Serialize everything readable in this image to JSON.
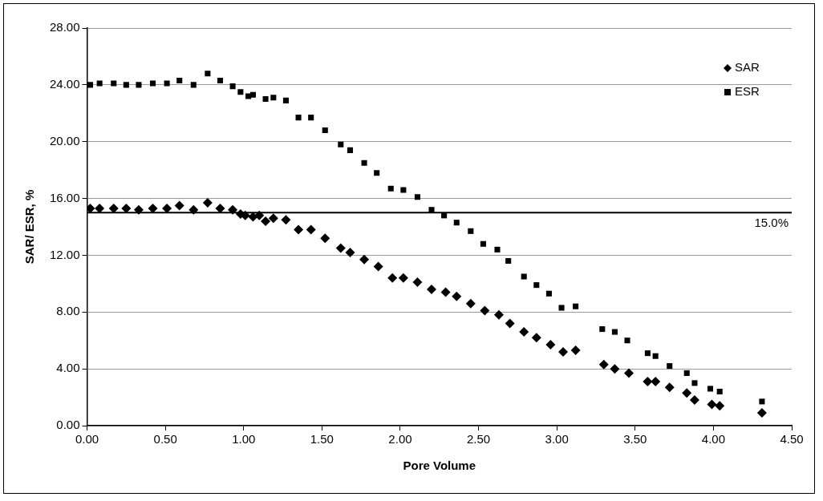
{
  "chart_data": {
    "type": "scatter",
    "xlabel": "Pore Volume",
    "ylabel": "SAR/ ESR, %",
    "xlim": [
      0,
      4.5
    ],
    "ylim": [
      0,
      28
    ],
    "xticks": [
      {
        "value": 0,
        "label": "0.00"
      },
      {
        "value": 0.5,
        "label": "0.50"
      },
      {
        "value": 1,
        "label": "1.00"
      },
      {
        "value": 1.5,
        "label": "1.50"
      },
      {
        "value": 2,
        "label": "2.00"
      },
      {
        "value": 2.5,
        "label": "2.50"
      },
      {
        "value": 3,
        "label": "3.00"
      },
      {
        "value": 3.5,
        "label": "3.50"
      },
      {
        "value": 4,
        "label": "4.00"
      },
      {
        "value": 4.5,
        "label": "4.50"
      }
    ],
    "yticks": [
      {
        "value": 0,
        "label": "0.00"
      },
      {
        "value": 4,
        "label": "4.00"
      },
      {
        "value": 8,
        "label": "8.00"
      },
      {
        "value": 12,
        "label": "12.00"
      },
      {
        "value": 16,
        "label": "16.00"
      },
      {
        "value": 20,
        "label": "20.00"
      },
      {
        "value": 24,
        "label": "24.00"
      },
      {
        "value": 28,
        "label": "28.00"
      }
    ],
    "grid": "y",
    "legend": "top right",
    "ref_lines": [
      {
        "axis": "y",
        "value": 15,
        "label": "15.0%",
        "color": "#000000"
      }
    ],
    "series": [
      {
        "name": "SAR",
        "color": "#000000",
        "marker": "diamond",
        "x": [
          0.02,
          0.08,
          0.17,
          0.25,
          0.33,
          0.42,
          0.51,
          0.59,
          0.68,
          0.77,
          0.85,
          0.93,
          0.98,
          1.01,
          1.06,
          1.1,
          1.14,
          1.19,
          1.27,
          1.35,
          1.43,
          1.52,
          1.62,
          1.68,
          1.77,
          1.86,
          1.95,
          2.02,
          2.11,
          2.2,
          2.29,
          2.36,
          2.45,
          2.54,
          2.63,
          2.7,
          2.79,
          2.87,
          2.96,
          3.04,
          3.12,
          3.3,
          3.37,
          3.46,
          3.58,
          3.63,
          3.72,
          3.83,
          3.88,
          3.99,
          4.04,
          4.31
        ],
        "values": [
          15.3,
          15.3,
          15.3,
          15.3,
          15.2,
          15.3,
          15.3,
          15.5,
          15.2,
          15.7,
          15.3,
          15.2,
          14.9,
          14.8,
          14.7,
          14.8,
          14.4,
          14.6,
          14.5,
          13.8,
          13.8,
          13.2,
          12.5,
          12.2,
          11.7,
          11.2,
          10.4,
          10.4,
          10.1,
          9.6,
          9.4,
          9.1,
          8.6,
          8.1,
          7.8,
          7.2,
          6.6,
          6.2,
          5.7,
          5.2,
          5.3,
          4.3,
          4,
          3.7,
          3.1,
          3.1,
          2.7,
          2.3,
          1.8,
          1.5,
          1.4,
          0.9
        ]
      },
      {
        "name": "ESR",
        "color": "#000000",
        "marker": "square",
        "x": [
          0.02,
          0.08,
          0.17,
          0.25,
          0.33,
          0.42,
          0.51,
          0.59,
          0.68,
          0.77,
          0.85,
          0.93,
          0.98,
          1.03,
          1.06,
          1.14,
          1.19,
          1.27,
          1.35,
          1.43,
          1.52,
          1.62,
          1.68,
          1.77,
          1.85,
          1.94,
          2.02,
          2.11,
          2.2,
          2.28,
          2.36,
          2.45,
          2.53,
          2.62,
          2.69,
          2.79,
          2.87,
          2.95,
          3.03,
          3.12,
          3.29,
          3.37,
          3.45,
          3.58,
          3.63,
          3.72,
          3.83,
          3.88,
          3.98,
          4.04,
          4.31
        ],
        "values": [
          24,
          24.1,
          24.1,
          24,
          24,
          24.1,
          24.1,
          24.3,
          24,
          24.8,
          24.3,
          23.9,
          23.5,
          23.2,
          23.3,
          23,
          23.1,
          22.9,
          21.7,
          21.7,
          20.8,
          19.8,
          19.4,
          18.5,
          17.8,
          16.7,
          16.6,
          16.1,
          15.2,
          14.8,
          14.3,
          13.7,
          12.8,
          12.4,
          11.6,
          10.5,
          9.9,
          9.3,
          8.3,
          8.4,
          6.8,
          6.6,
          6,
          5.1,
          4.9,
          4.2,
          3.7,
          3,
          2.6,
          2.4,
          1.7
        ]
      }
    ]
  }
}
